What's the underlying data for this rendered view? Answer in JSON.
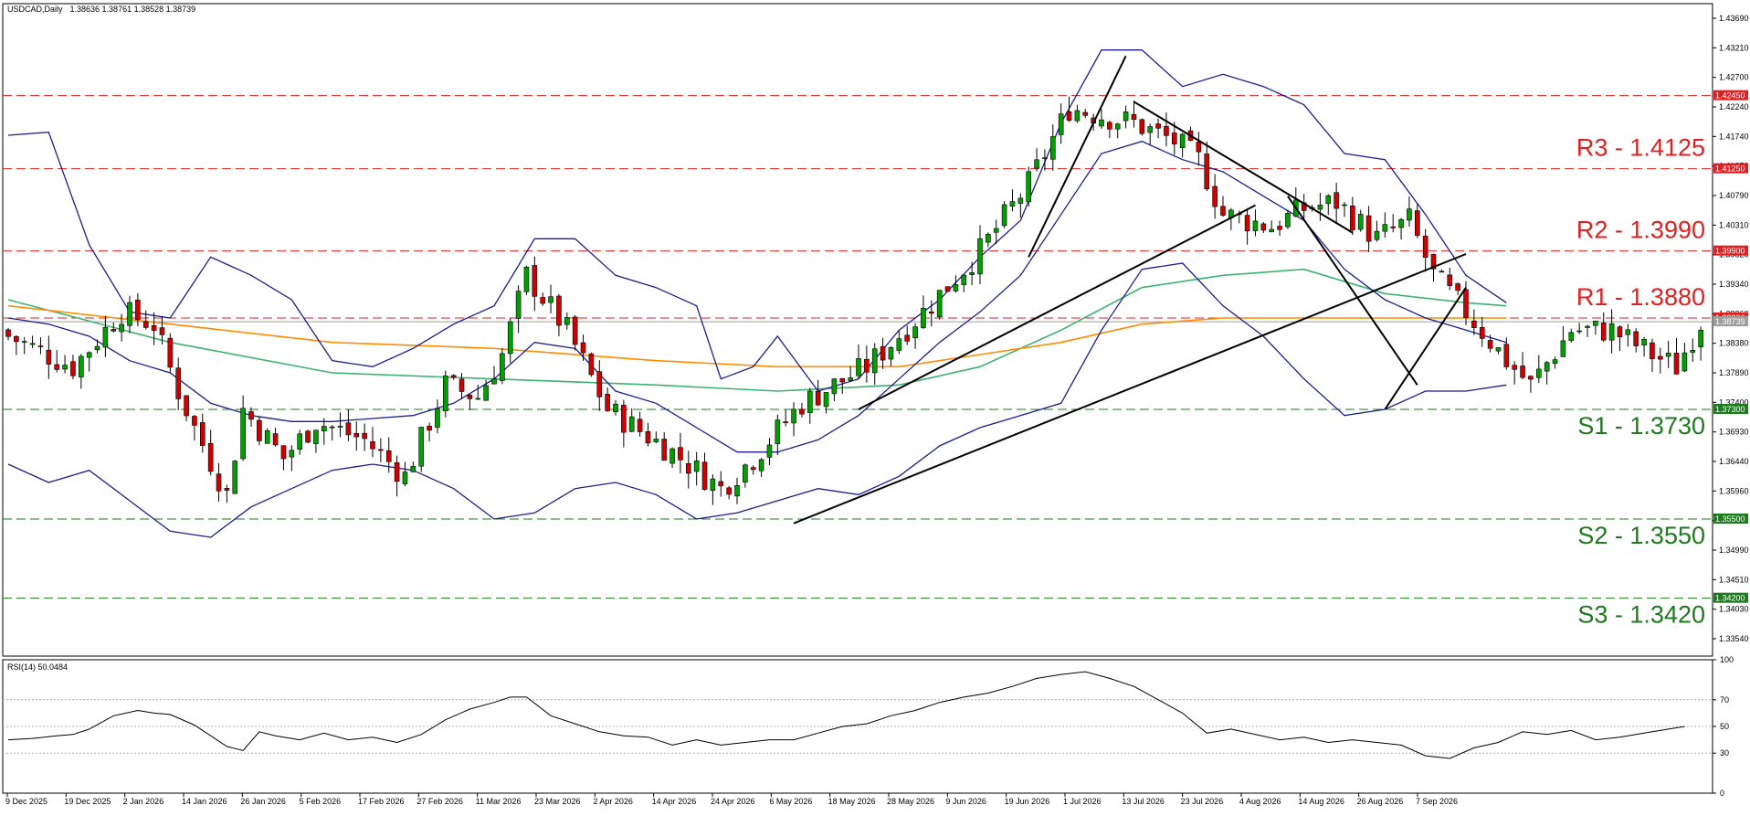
{
  "header": {
    "symbol": "USDCAD,Daily",
    "ohlc": "1.38636 1.38761 1.38528 1.38739"
  },
  "rsi_header": "RSI(14) 50.0484",
  "colors": {
    "bull": "#00a000",
    "bear": "#d00000",
    "bollinger": "#1c1c8c",
    "ma_green": "#3cb371",
    "ma_orange": "#ff8c00",
    "resistance": "#e02020",
    "support": "#1e7a1e",
    "trendline": "#000000",
    "rsi_line": "#000000"
  },
  "chart_data": [
    {
      "type": "candlestick",
      "title": "USDCAD,Daily",
      "ylim": [
        1.3325,
        1.4396
      ],
      "y_ticks": [
        "1.43690",
        "1.43210",
        "1.42700",
        "1.42240",
        "1.41740",
        "1.41250",
        "1.40790",
        "1.40310",
        "1.39820",
        "1.39340",
        "1.38860",
        "1.38380",
        "1.37890",
        "1.37400",
        "1.36930",
        "1.36440",
        "1.35960",
        "1.35480",
        "1.34990",
        "1.34510",
        "1.34030",
        "1.33540"
      ],
      "x_ticks": [
        "9 Dec 2025",
        "19 Dec 2025",
        "2 Jan 2026",
        "14 Jan 2026",
        "26 Jan 2026",
        "5 Feb 2026",
        "17 Feb 2026",
        "27 Feb 2026",
        "11 Mar 2026",
        "23 Mar 2026",
        "2 Apr 2026",
        "14 Apr 2026",
        "24 Apr 2026",
        "6 May 2026",
        "18 May 2026",
        "28 May 2026",
        "9 Jun 2026",
        "19 Jun 2026",
        "1 Jul 2026",
        "13 Jul 2026",
        "23 Jul 2026",
        "4 Aug 2026",
        "14 Aug 2026",
        "26 Aug 2026",
        "7 Sep 2026"
      ],
      "levels": [
        {
          "label": "R3 - 1.4125",
          "value": 1.4125,
          "tag": "1.41250",
          "kind": "resistance"
        },
        {
          "label": "R2 - 1.3990",
          "value": 1.399,
          "tag": "1.39900",
          "kind": "resistance"
        },
        {
          "label": "R1 - 1.3880",
          "value": 1.388,
          "tag": "1.38800",
          "kind": "resistance"
        },
        {
          "label": "S1 - 1.3730",
          "value": 1.373,
          "tag": "1.37300",
          "kind": "support"
        },
        {
          "label": "S2 - 1.3550",
          "value": 1.355,
          "tag": "1.35500",
          "kind": "support"
        },
        {
          "label": "S3 - 1.3420",
          "value": 1.342,
          "tag": "1.34200",
          "kind": "support"
        }
      ],
      "extra_tags": [
        "1.42450",
        "1.38739"
      ],
      "close_anchors": [
        [
          0,
          1.385
        ],
        [
          8,
          1.38
        ],
        [
          14,
          1.389
        ],
        [
          18,
          1.387
        ],
        [
          21,
          1.376
        ],
        [
          23,
          1.37
        ],
        [
          27,
          1.359
        ],
        [
          29,
          1.373
        ],
        [
          34,
          1.365
        ],
        [
          38,
          1.371
        ],
        [
          44,
          1.368
        ],
        [
          49,
          1.362
        ],
        [
          54,
          1.377
        ],
        [
          58,
          1.375
        ],
        [
          61,
          1.382
        ],
        [
          64,
          1.395
        ],
        [
          69,
          1.386
        ],
        [
          74,
          1.373
        ],
        [
          82,
          1.366
        ],
        [
          88,
          1.36
        ],
        [
          92,
          1.365
        ],
        [
          98,
          1.374
        ],
        [
          106,
          1.38
        ],
        [
          113,
          1.389
        ],
        [
          120,
          1.399
        ],
        [
          126,
          1.41
        ],
        [
          131,
          1.4225
        ],
        [
          139,
          1.42
        ],
        [
          144,
          1.417
        ],
        [
          147,
          1.414
        ],
        [
          150,
          1.405
        ],
        [
          156,
          1.403
        ],
        [
          160,
          1.406
        ],
        [
          164,
          1.407
        ],
        [
          169,
          1.401
        ],
        [
          173,
          1.404
        ],
        [
          176,
          1.395
        ],
        [
          180,
          1.389
        ],
        [
          185,
          1.381
        ],
        [
          188,
          1.377
        ],
        [
          193,
          1.386
        ],
        [
          198,
          1.386
        ],
        [
          203,
          1.382
        ],
        [
          206,
          1.38
        ],
        [
          209,
          1.3874
        ]
      ],
      "trendlines": [
        [
          [
            97,
            1.3543
          ],
          [
            180,
            1.3985
          ]
        ],
        [
          [
            105,
            1.373
          ],
          [
            154,
            1.4065
          ]
        ],
        [
          [
            126,
            1.398
          ],
          [
            138,
            1.431
          ]
        ],
        [
          [
            139,
            1.4235
          ],
          [
            166,
            1.402
          ]
        ],
        [
          [
            158,
            1.408
          ],
          [
            174,
            1.377
          ]
        ],
        [
          [
            170,
            1.373
          ],
          [
            180,
            1.393
          ]
        ]
      ],
      "bollinger": {
        "upper": [
          [
            0,
            1.418
          ],
          [
            5,
            1.4185
          ],
          [
            10,
            1.4
          ],
          [
            15,
            1.389
          ],
          [
            20,
            1.388
          ],
          [
            25,
            1.398
          ],
          [
            30,
            1.395
          ],
          [
            35,
            1.391
          ],
          [
            40,
            1.381
          ],
          [
            45,
            1.38
          ],
          [
            50,
            1.383
          ],
          [
            55,
            1.387
          ],
          [
            60,
            1.39
          ],
          [
            65,
            1.401
          ],
          [
            70,
            1.401
          ],
          [
            75,
            1.395
          ],
          [
            80,
            1.393
          ],
          [
            85,
            1.39
          ],
          [
            88,
            1.378
          ],
          [
            92,
            1.38
          ],
          [
            95,
            1.385
          ],
          [
            100,
            1.376
          ],
          [
            105,
            1.378
          ],
          [
            110,
            1.386
          ],
          [
            115,
            1.391
          ],
          [
            120,
            1.398
          ],
          [
            125,
            1.404
          ],
          [
            130,
            1.42
          ],
          [
            135,
            1.432
          ],
          [
            140,
            1.432
          ],
          [
            145,
            1.426
          ],
          [
            150,
            1.428
          ],
          [
            155,
            1.426
          ],
          [
            160,
            1.423
          ],
          [
            165,
            1.415
          ],
          [
            170,
            1.414
          ],
          [
            175,
            1.405
          ],
          [
            180,
            1.395
          ],
          [
            185,
            1.3905
          ]
        ],
        "middle": [
          [
            0,
            1.388
          ],
          [
            5,
            1.387
          ],
          [
            10,
            1.385
          ],
          [
            15,
            1.381
          ],
          [
            20,
            1.379
          ],
          [
            25,
            1.374
          ],
          [
            30,
            1.372
          ],
          [
            35,
            1.371
          ],
          [
            40,
            1.371
          ],
          [
            45,
            1.3715
          ],
          [
            50,
            1.372
          ],
          [
            55,
            1.374
          ],
          [
            60,
            1.378
          ],
          [
            65,
            1.384
          ],
          [
            70,
            1.383
          ],
          [
            75,
            1.376
          ],
          [
            80,
            1.374
          ],
          [
            85,
            1.37
          ],
          [
            90,
            1.366
          ],
          [
            95,
            1.366
          ],
          [
            100,
            1.368
          ],
          [
            105,
            1.372
          ],
          [
            110,
            1.378
          ],
          [
            115,
            1.384
          ],
          [
            120,
            1.389
          ],
          [
            125,
            1.395
          ],
          [
            130,
            1.405
          ],
          [
            135,
            1.415
          ],
          [
            140,
            1.417
          ],
          [
            145,
            1.414
          ],
          [
            150,
            1.412
          ],
          [
            155,
            1.408
          ],
          [
            160,
            1.404
          ],
          [
            165,
            1.396
          ],
          [
            170,
            1.391
          ],
          [
            175,
            1.388
          ],
          [
            180,
            1.386
          ],
          [
            185,
            1.384
          ]
        ],
        "lower": [
          [
            0,
            1.364
          ],
          [
            5,
            1.361
          ],
          [
            10,
            1.363
          ],
          [
            15,
            1.358
          ],
          [
            20,
            1.353
          ],
          [
            25,
            1.352
          ],
          [
            30,
            1.357
          ],
          [
            35,
            1.36
          ],
          [
            40,
            1.363
          ],
          [
            45,
            1.364
          ],
          [
            50,
            1.363
          ],
          [
            55,
            1.36
          ],
          [
            60,
            1.355
          ],
          [
            65,
            1.356
          ],
          [
            70,
            1.36
          ],
          [
            75,
            1.361
          ],
          [
            80,
            1.359
          ],
          [
            85,
            1.355
          ],
          [
            90,
            1.356
          ],
          [
            95,
            1.358
          ],
          [
            100,
            1.36
          ],
          [
            105,
            1.359
          ],
          [
            110,
            1.362
          ],
          [
            115,
            1.367
          ],
          [
            120,
            1.37
          ],
          [
            125,
            1.372
          ],
          [
            130,
            1.374
          ],
          [
            135,
            1.386
          ],
          [
            140,
            1.396
          ],
          [
            145,
            1.397
          ],
          [
            150,
            1.39
          ],
          [
            155,
            1.385
          ],
          [
            160,
            1.378
          ],
          [
            165,
            1.372
          ],
          [
            170,
            1.373
          ],
          [
            175,
            1.376
          ],
          [
            180,
            1.376
          ],
          [
            185,
            1.377
          ]
        ]
      },
      "ma_green": [
        [
          0,
          1.391
        ],
        [
          20,
          1.384
        ],
        [
          40,
          1.379
        ],
        [
          60,
          1.378
        ],
        [
          80,
          1.377
        ],
        [
          95,
          1.376
        ],
        [
          110,
          1.377
        ],
        [
          120,
          1.38
        ],
        [
          130,
          1.386
        ],
        [
          140,
          1.393
        ],
        [
          150,
          1.395
        ],
        [
          160,
          1.396
        ],
        [
          170,
          1.392
        ],
        [
          180,
          1.3905
        ],
        [
          185,
          1.39
        ]
      ],
      "ma_orange": [
        [
          0,
          1.39
        ],
        [
          20,
          1.387
        ],
        [
          40,
          1.384
        ],
        [
          60,
          1.383
        ],
        [
          80,
          1.381
        ],
        [
          95,
          1.38
        ],
        [
          110,
          1.38
        ],
        [
          120,
          1.382
        ],
        [
          130,
          1.384
        ],
        [
          140,
          1.387
        ],
        [
          150,
          1.388
        ],
        [
          160,
          1.388
        ],
        [
          170,
          1.388
        ],
        [
          180,
          1.388
        ],
        [
          185,
          1.388
        ]
      ]
    },
    {
      "type": "line",
      "title": "RSI(14) 50.0484",
      "ylim": [
        0,
        100
      ],
      "y_ticks": [
        "100",
        "70",
        "50",
        "30",
        "0"
      ],
      "series": [
        {
          "values": [
            [
              0,
              40
            ],
            [
              3,
              41
            ],
            [
              6,
              43
            ],
            [
              8,
              44
            ],
            [
              10,
              48
            ],
            [
              13,
              58
            ],
            [
              16,
              62
            ],
            [
              18,
              60
            ],
            [
              20,
              59
            ],
            [
              23,
              51
            ],
            [
              25,
              43
            ],
            [
              27,
              35
            ],
            [
              29,
              32
            ],
            [
              31,
              46
            ],
            [
              33,
              43
            ],
            [
              36,
              40
            ],
            [
              39,
              45
            ],
            [
              42,
              40
            ],
            [
              45,
              42
            ],
            [
              48,
              38
            ],
            [
              51,
              44
            ],
            [
              54,
              55
            ],
            [
              57,
              63
            ],
            [
              60,
              68
            ],
            [
              62,
              72
            ],
            [
              64,
              72
            ],
            [
              67,
              58
            ],
            [
              70,
              52
            ],
            [
              73,
              46
            ],
            [
              76,
              43
            ],
            [
              79,
              42
            ],
            [
              82,
              36
            ],
            [
              85,
              40
            ],
            [
              88,
              36
            ],
            [
              91,
              38
            ],
            [
              94,
              40
            ],
            [
              97,
              40
            ],
            [
              100,
              45
            ],
            [
              103,
              50
            ],
            [
              106,
              52
            ],
            [
              109,
              58
            ],
            [
              112,
              62
            ],
            [
              115,
              68
            ],
            [
              118,
              72
            ],
            [
              121,
              75
            ],
            [
              124,
              80
            ],
            [
              127,
              86
            ],
            [
              130,
              89
            ],
            [
              133,
              91
            ],
            [
              136,
              86
            ],
            [
              139,
              80
            ],
            [
              142,
              70
            ],
            [
              145,
              60
            ],
            [
              148,
              45
            ],
            [
              151,
              48
            ],
            [
              154,
              44
            ],
            [
              157,
              40
            ],
            [
              160,
              42
            ],
            [
              163,
              38
            ],
            [
              166,
              40
            ],
            [
              169,
              38
            ],
            [
              172,
              36
            ],
            [
              175,
              28
            ],
            [
              178,
              26
            ],
            [
              181,
              34
            ],
            [
              184,
              38
            ],
            [
              187,
              46
            ],
            [
              190,
              44
            ],
            [
              193,
              47
            ],
            [
              196,
              40
            ],
            [
              199,
              42
            ],
            [
              202,
              45
            ],
            [
              205,
              48
            ],
            [
              207,
              50
            ]
          ]
        }
      ]
    }
  ]
}
